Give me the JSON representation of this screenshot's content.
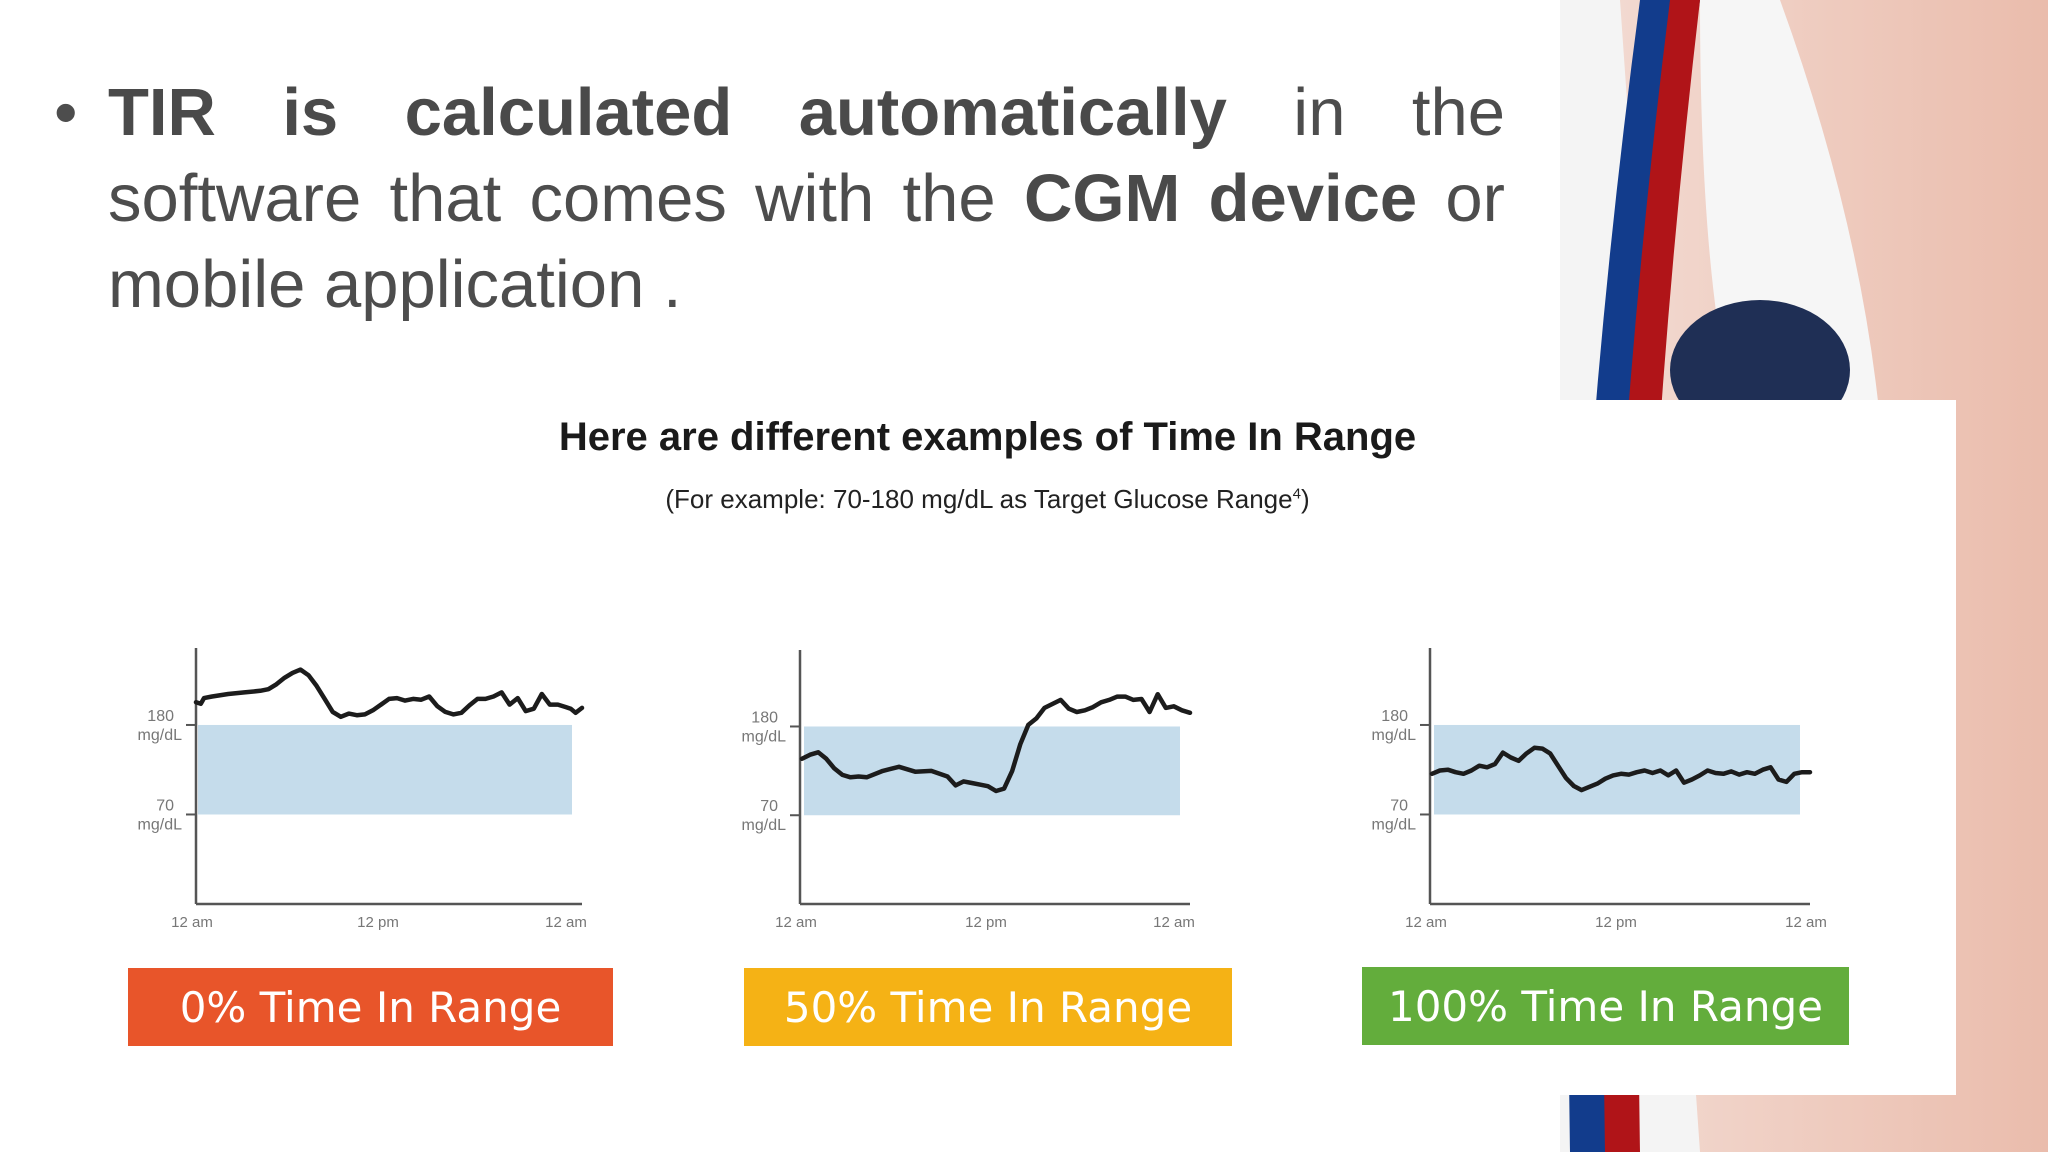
{
  "bullet": {
    "part1_bold": "TIR is calculated automatically",
    "part2": " in the software that comes with the ",
    "part3_bold": "CGM device",
    "part4": " or mobile application ."
  },
  "panel": {
    "title": "Here are different examples of Time In Range",
    "subtitle_main": "(For example: 70-180 mg/dL as Target Glucose Range",
    "subtitle_sup": "4",
    "subtitle_end": ")"
  },
  "colors": {
    "range_band": "#c5dceb",
    "line": "#1c1c1c",
    "axis": "#555555",
    "badge_0": "#e8552a",
    "badge_50": "#f5b215",
    "badge_100": "#63ad3c",
    "deco_blue": "#123c8c",
    "deco_red": "#b01418"
  },
  "chart_data": [
    {
      "type": "line",
      "label": "0% Time In Range",
      "x_ticks": [
        "12 am",
        "12 pm",
        "12 am"
      ],
      "y_ticks": [
        {
          "value": 180,
          "label": "180\nmg/dL"
        },
        {
          "value": 70,
          "label": "70\nmg/dL"
        }
      ],
      "ylim": [
        -40,
        250
      ],
      "target_range": [
        70,
        180
      ],
      "x": [
        0,
        0.3,
        0.5,
        1,
        2,
        3,
        4,
        4.5,
        5,
        5.5,
        6,
        6.5,
        7,
        7.5,
        8,
        8.5,
        9,
        9.5,
        10,
        10.5,
        11,
        11.5,
        12,
        12.5,
        13,
        13.5,
        14,
        14.5,
        15,
        15.5,
        16,
        16.5,
        17,
        17.5,
        18,
        18.5,
        19,
        19.5,
        20,
        20.5,
        21,
        21.5,
        22,
        22.5,
        23,
        23.3,
        23.6,
        24
      ],
      "y": [
        208,
        206,
        213,
        215,
        218,
        220,
        222,
        224,
        230,
        238,
        244,
        248,
        241,
        228,
        212,
        196,
        190,
        194,
        192,
        193,
        198,
        205,
        212,
        213,
        210,
        212,
        211,
        215,
        203,
        196,
        193,
        195,
        204,
        212,
        212,
        215,
        220,
        205,
        213,
        197,
        200,
        218,
        205,
        205,
        202,
        200,
        195,
        201
      ]
    },
    {
      "type": "line",
      "label": "50% Time In Range",
      "x_ticks": [
        "12 am",
        "12 pm",
        "12 am"
      ],
      "y_ticks": [
        {
          "value": 180,
          "label": "180\nmg/dL"
        },
        {
          "value": 70,
          "label": "70\nmg/dL"
        }
      ],
      "ylim": [
        -40,
        250
      ],
      "target_range": [
        70,
        180
      ],
      "x": [
        0,
        0.5,
        1,
        1.5,
        2,
        2.5,
        3,
        3.5,
        4,
        5,
        6,
        7,
        8,
        9,
        9.5,
        10,
        10.5,
        11,
        11.5,
        12,
        12.5,
        13,
        13.5,
        14,
        14.5,
        15,
        15.5,
        16,
        16.5,
        17,
        17.5,
        18,
        18.5,
        19,
        19.5,
        20,
        20.5,
        21,
        21.5,
        22,
        22.5,
        23,
        23.5,
        24
      ],
      "y": [
        140,
        145,
        148,
        140,
        128,
        120,
        117,
        118,
        117,
        125,
        130,
        124,
        125,
        118,
        107,
        112,
        110,
        108,
        106,
        100,
        103,
        125,
        158,
        182,
        190,
        203,
        208,
        213,
        202,
        198,
        200,
        204,
        210,
        213,
        217,
        217,
        213,
        214,
        198,
        220,
        203,
        205,
        200,
        197
      ]
    },
    {
      "type": "line",
      "label": "100% Time In Range",
      "x_ticks": [
        "12 am",
        "12 pm",
        "12 am"
      ],
      "y_ticks": [
        {
          "value": 180,
          "label": "180\nmg/dL"
        },
        {
          "value": 70,
          "label": "70\nmg/dL"
        }
      ],
      "ylim": [
        -40,
        250
      ],
      "target_range": [
        70,
        180
      ],
      "x": [
        0,
        0.5,
        1,
        1.5,
        2,
        2.5,
        3,
        3.5,
        4,
        4.5,
        5,
        5.5,
        6,
        6.5,
        7,
        7.5,
        8,
        8.5,
        9,
        9.5,
        10,
        10.5,
        11,
        11.5,
        12,
        12.5,
        13,
        13.5,
        14,
        14.5,
        15,
        15.5,
        16,
        16.5,
        17,
        17.5,
        18,
        18.5,
        19,
        19.5,
        20,
        20.5,
        21,
        21.5,
        22,
        22.5,
        23,
        23.5,
        24
      ],
      "y": [
        120,
        124,
        125,
        122,
        120,
        124,
        130,
        128,
        132,
        146,
        140,
        136,
        145,
        152,
        151,
        145,
        130,
        115,
        105,
        100,
        104,
        108,
        114,
        118,
        120,
        119,
        122,
        124,
        121,
        124,
        118,
        124,
        109,
        113,
        118,
        124,
        121,
        120,
        123,
        119,
        122,
        120,
        125,
        128,
        113,
        110,
        120,
        122,
        122
      ]
    }
  ]
}
